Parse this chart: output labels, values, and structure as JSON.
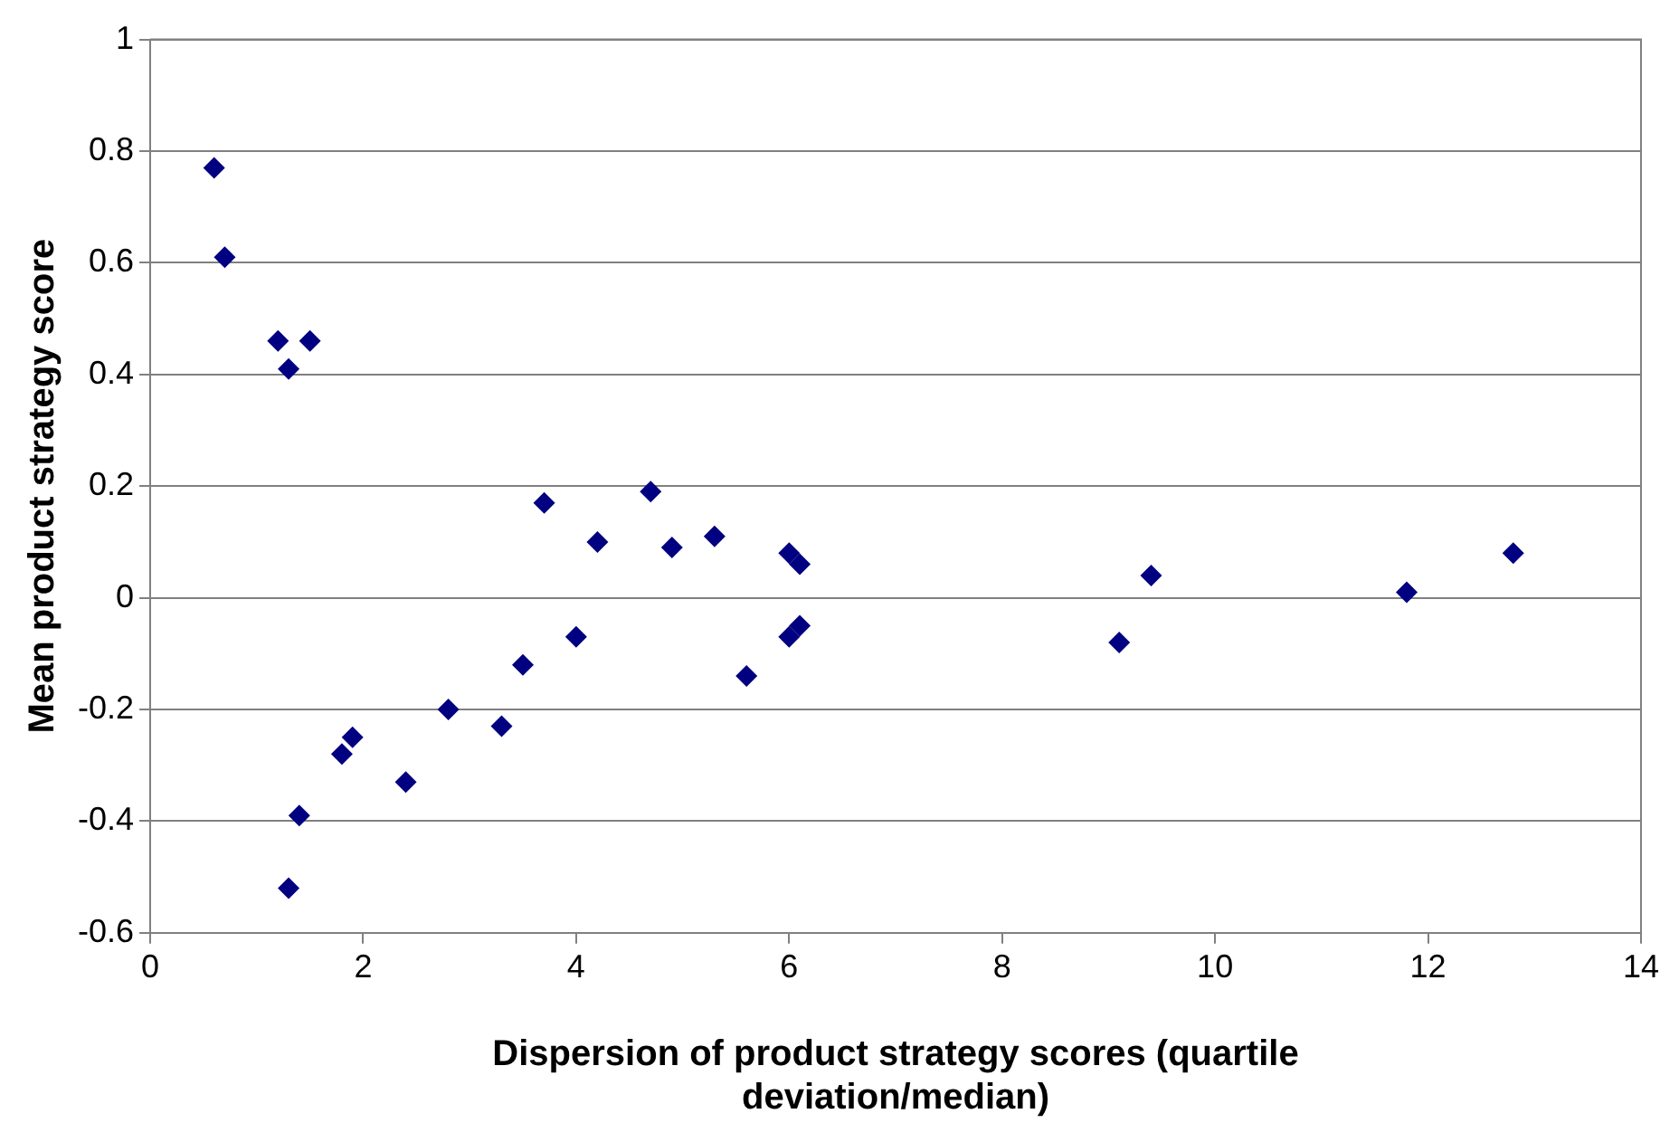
{
  "chart_data": {
    "type": "scatter",
    "xlabel": "Dispersion of product strategy scores (quartile deviation/median)",
    "ylabel": "Mean product strategy score",
    "x": [
      0.6,
      0.7,
      1.2,
      1.5,
      1.3,
      1.3,
      1.4,
      1.8,
      1.9,
      2.4,
      2.8,
      3.3,
      3.5,
      3.7,
      4.0,
      4.2,
      4.7,
      4.9,
      5.3,
      5.6,
      6.0,
      6.1,
      6.0,
      6.1,
      9.1,
      9.4,
      11.8,
      12.8
    ],
    "values": [
      0.77,
      0.61,
      0.46,
      0.46,
      0.41,
      -0.52,
      -0.39,
      -0.28,
      -0.25,
      -0.33,
      -0.2,
      -0.23,
      -0.12,
      0.17,
      -0.07,
      0.1,
      0.19,
      0.09,
      0.11,
      -0.14,
      0.08,
      0.06,
      -0.07,
      -0.05,
      -0.08,
      0.04,
      0.01,
      0.08
    ],
    "color": "#000080",
    "marker": "diamond",
    "xlim": [
      0,
      14
    ],
    "xticks": [
      0,
      2,
      4,
      6,
      8,
      10,
      12,
      14
    ],
    "ylim": [
      -0.6,
      1
    ],
    "yticks": [
      -0.6,
      -0.4,
      -0.2,
      0,
      0.2,
      0.4,
      0.6,
      0.8,
      1
    ],
    "grid": "y",
    "legend": false
  }
}
